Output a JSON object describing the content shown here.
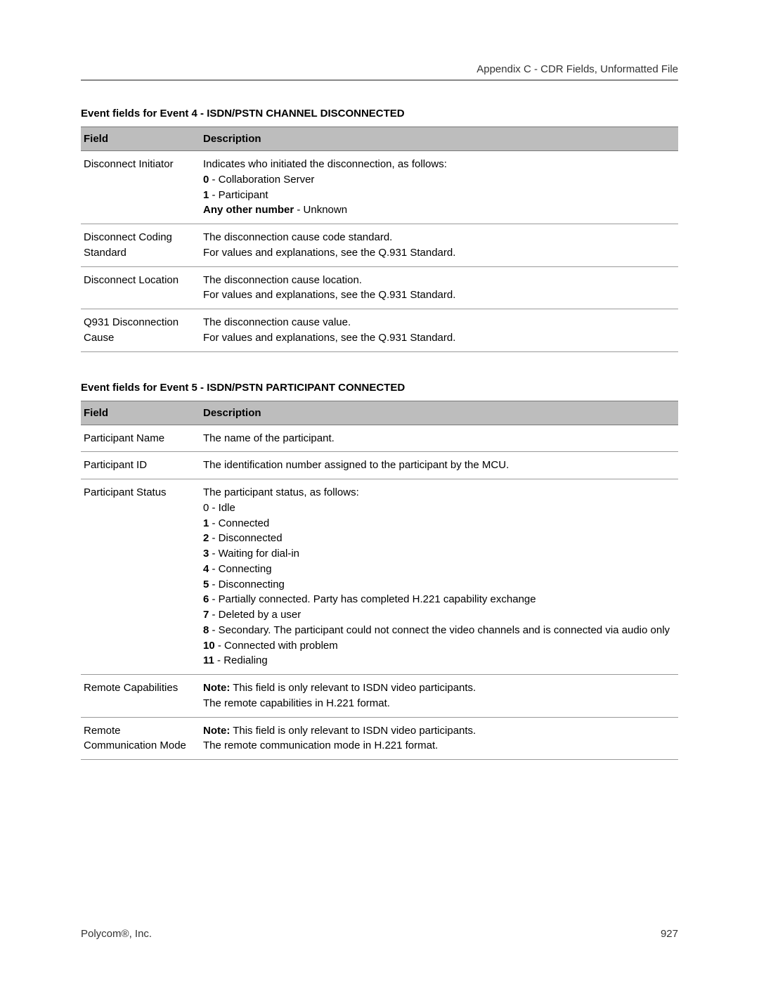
{
  "header": {
    "title": "Appendix C - CDR Fields, Unformatted File"
  },
  "sections": [
    {
      "title": "Event fields for Event 4 - ISDN/PSTN CHANNEL DISCONNECTED",
      "columns": {
        "field": "Field",
        "description": "Description"
      },
      "rows": [
        {
          "field": "Disconnect Initiator",
          "desc": [
            {
              "text": "Indicates who initiated the disconnection, as follows:"
            },
            {
              "bold": "0",
              "text": " - Collaboration Server"
            },
            {
              "bold": "1",
              "text": " - Participant"
            },
            {
              "bold": "Any other number",
              "text": " - Unknown"
            }
          ]
        },
        {
          "field": "Disconnect Coding Standard",
          "desc": [
            {
              "text": "The disconnection cause code standard."
            },
            {
              "text": "For values and explanations, see the Q.931 Standard."
            }
          ]
        },
        {
          "field": "Disconnect Location",
          "desc": [
            {
              "text": "The disconnection cause location."
            },
            {
              "text": "For values and explanations, see the Q.931 Standard."
            }
          ]
        },
        {
          "field": "Q931 Disconnection Cause",
          "desc": [
            {
              "text": "The disconnection cause value."
            },
            {
              "text": "For values and explanations, see the Q.931 Standard."
            }
          ]
        }
      ]
    },
    {
      "title": "Event fields for Event 5 - ISDN/PSTN PARTICIPANT CONNECTED",
      "columns": {
        "field": "Field",
        "description": "Description"
      },
      "rows": [
        {
          "field": "Participant Name",
          "desc": [
            {
              "text": "The name of the participant."
            }
          ]
        },
        {
          "field": "Participant ID",
          "desc": [
            {
              "text": "The identification number assigned to the participant by the MCU."
            }
          ]
        },
        {
          "field": "Participant Status",
          "desc": [
            {
              "text": "The participant status, as follows:"
            },
            {
              "text": "0 - Idle"
            },
            {
              "bold": "1",
              "text": " - Connected"
            },
            {
              "bold": "2",
              "text": " - Disconnected"
            },
            {
              "bold": "3",
              "text": " - Waiting for dial-in"
            },
            {
              "bold": "4",
              "text": " - Connecting"
            },
            {
              "bold": "5",
              "text": " - Disconnecting"
            },
            {
              "bold": "6",
              "text": " - Partially connected. Party has completed H.221 capability exchange"
            },
            {
              "bold": "7",
              "text": " - Deleted by a user"
            },
            {
              "bold": "8",
              "text": " - Secondary. The participant could not connect the video channels and is connected via audio only"
            },
            {
              "bold": "10",
              "text": " - Connected with problem"
            },
            {
              "bold": "11",
              "text": " - Redialing"
            }
          ]
        },
        {
          "field": "Remote Capabilities",
          "desc": [
            {
              "bold": "Note:",
              "text": " This field is only relevant to ISDN video participants."
            },
            {
              "text": "The remote capabilities in H.221 format."
            }
          ]
        },
        {
          "field": "Remote Communication Mode",
          "desc": [
            {
              "bold": "Note:",
              "text": " This field is only relevant to ISDN video participants."
            },
            {
              "text": "The remote communication mode in H.221 format."
            }
          ]
        }
      ]
    }
  ],
  "footer": {
    "company": "Polycom®, Inc.",
    "page": "927"
  }
}
